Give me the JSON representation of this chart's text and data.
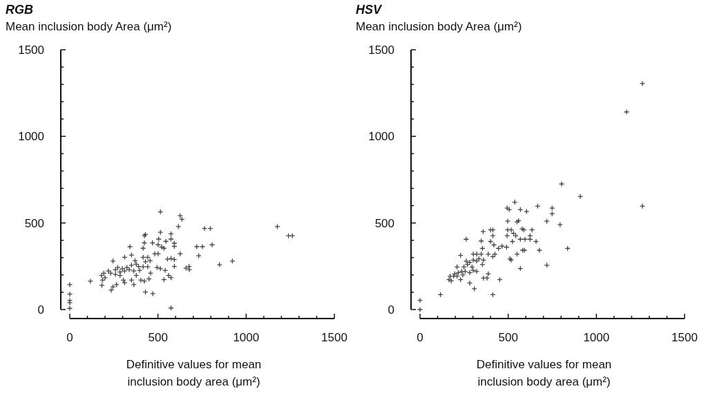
{
  "chart_data": [
    {
      "type": "scatter",
      "title": "RGB",
      "ylabel": "Mean inclusion body Area (μm²)",
      "xlabel": "Definitive values for mean inclusion body area (μm²)",
      "xlim": [
        0,
        1500
      ],
      "ylim": [
        0,
        1500
      ],
      "xticks": [
        0,
        {
          "value": 100,
          "label": null
        },
        {
          "value": 200,
          "label": null
        },
        {
          "value": 300,
          "label": null
        },
        {
          "value": 400,
          "label": null
        },
        500,
        {
          "value": 600,
          "label": null
        },
        {
          "value": 700,
          "label": null
        },
        {
          "value": 800,
          "label": null
        },
        {
          "value": 900,
          "label": null
        },
        1000,
        {
          "value": 1100,
          "label": null
        },
        {
          "value": 1200,
          "label": null
        },
        {
          "value": 1300,
          "label": null
        },
        {
          "value": 1400,
          "label": null
        },
        1500
      ],
      "yticks": [
        0,
        {
          "value": 100,
          "label": null
        },
        {
          "value": 200,
          "label": null
        },
        {
          "value": 300,
          "label": null
        },
        {
          "value": 400,
          "label": null
        },
        500,
        {
          "value": 600,
          "label": null
        },
        {
          "value": 700,
          "label": null
        },
        {
          "value": 800,
          "label": null
        },
        {
          "value": 900,
          "label": null
        },
        1000,
        {
          "value": 1100,
          "label": null
        },
        {
          "value": 1200,
          "label": null
        },
        {
          "value": 1300,
          "label": null
        },
        {
          "value": 1400,
          "label": null
        },
        1500
      ],
      "marker": "cross",
      "series": [
        {
          "color": "#444444",
          "x": [
            514,
            626,
            636,
            616,
            764,
            797,
            1177,
            1240,
            1262,
            807,
            720,
            752,
            731,
            849,
            922,
            676,
            678,
            659,
            574,
            0,
            0,
            0,
            0,
            0,
            117,
            182,
            235,
            245,
            265,
            429,
            471,
            423,
            429,
            423,
            514,
            574,
            504,
            341,
            416,
            469,
            501,
            521,
            534,
            545,
            574,
            593,
            593,
            626,
            482,
            501,
            311,
            350,
            245,
            370,
            416,
            442,
            455,
            429,
            554,
            574,
            593,
            593,
            495,
            514,
            541,
            390,
            416,
            442,
            350,
            324,
            298,
            272,
            219,
            193,
            180,
            200,
            186,
            232,
            259,
            285,
            311,
            337,
            363,
            259,
            285,
            304,
            311,
            350,
            363,
            377,
            403,
            423,
            449,
            458,
            377,
            396,
            534,
            560,
            574
          ],
          "values": [
            564,
            542,
            521,
            479,
            468,
            468,
            479,
            426,
            426,
            374,
            363,
            363,
            311,
            259,
            280,
            249,
            230,
            239,
            9,
            144,
            89,
            52,
            39,
            7,
            164,
            140,
            112,
            131,
            144,
            101,
            92,
            426,
            433,
            385,
            446,
            437,
            407,
            363,
            354,
            385,
            374,
            361,
            354,
            394,
            407,
            383,
            365,
            322,
            322,
            322,
            302,
            315,
            280,
            282,
            302,
            302,
            282,
            276,
            291,
            295,
            289,
            249,
            243,
            236,
            226,
            249,
            247,
            247,
            256,
            243,
            236,
            243,
            223,
            210,
            197,
            184,
            170,
            210,
            230,
            217,
            223,
            230,
            223,
            203,
            197,
            170,
            155,
            170,
            144,
            197,
            170,
            164,
            177,
            210,
            262,
            226,
            173,
            197,
            184
          ]
        }
      ]
    },
    {
      "type": "scatter",
      "title": "HSV",
      "ylabel": "Mean inclusion body Area (μm²)",
      "xlabel": "Definitive values for mean inclusion body area (μm²)",
      "xlim": [
        0,
        1500
      ],
      "ylim": [
        0,
        1500
      ],
      "xticks": [
        0,
        {
          "value": 100,
          "label": null
        },
        {
          "value": 200,
          "label": null
        },
        {
          "value": 300,
          "label": null
        },
        {
          "value": 400,
          "label": null
        },
        500,
        {
          "value": 600,
          "label": null
        },
        {
          "value": 700,
          "label": null
        },
        {
          "value": 800,
          "label": null
        },
        {
          "value": 900,
          "label": null
        },
        1000,
        {
          "value": 1100,
          "label": null
        },
        {
          "value": 1200,
          "label": null
        },
        {
          "value": 1300,
          "label": null
        },
        {
          "value": 1400,
          "label": null
        },
        1500
      ],
      "yticks": [
        0,
        {
          "value": 100,
          "label": null
        },
        {
          "value": 200,
          "label": null
        },
        {
          "value": 300,
          "label": null
        },
        {
          "value": 400,
          "label": null
        },
        500,
        {
          "value": 600,
          "label": null
        },
        {
          "value": 700,
          "label": null
        },
        {
          "value": 800,
          "label": null
        },
        {
          "value": 900,
          "label": null
        },
        1000,
        {
          "value": 1100,
          "label": null
        },
        {
          "value": 1200,
          "label": null
        },
        {
          "value": 1300,
          "label": null
        },
        {
          "value": 1400,
          "label": null
        },
        1500
      ],
      "marker": "cross",
      "series": [
        {
          "color": "#444444",
          "x": [
            0,
            0,
            116,
            413,
            909,
            1261,
            1171,
            1261,
            803,
            537,
            494,
            506,
            569,
            604,
            667,
            749,
            749,
            719,
            794,
            497,
            550,
            559,
            400,
            413,
            358,
            262,
            347,
            413,
            497,
            517,
            530,
            543,
            579,
            589,
            635,
            494,
            524,
            569,
            595,
            624,
            624,
            658,
            677,
            582,
            592,
            837,
            719,
            569,
            550,
            510,
            517,
            491,
            465,
            445,
            419,
            400,
            425,
            413,
            387,
            354,
            347,
            321,
            302,
            334,
            360,
            354,
            321,
            302,
            282,
            262,
            269,
            249,
            295,
            321,
            302,
            282,
            256,
            236,
            217,
            210,
            230,
            210,
            230,
            191,
            171,
            164,
            177,
            282,
            308,
            360,
            380,
            387,
            452,
            243,
            197
          ],
          "values": [
            53,
            0,
            86,
            86,
            653,
            597,
            1141,
            1305,
            725,
            620,
            586,
            577,
            577,
            566,
            597,
            586,
            553,
            510,
            490,
            510,
            506,
            513,
            460,
            460,
            450,
            406,
            396,
            426,
            460,
            460,
            440,
            426,
            466,
            460,
            460,
            426,
            393,
            406,
            406,
            426,
            406,
            393,
            342,
            342,
            342,
            353,
            256,
            237,
            320,
            293,
            286,
            360,
            366,
            353,
            373,
            393,
            320,
            306,
            320,
            353,
            320,
            320,
            320,
            293,
            286,
            260,
            280,
            286,
            273,
            280,
            260,
            246,
            246,
            220,
            226,
            213,
            220,
            220,
            213,
            246,
            313,
            193,
            173,
            193,
            193,
            173,
            166,
            153,
            120,
            182,
            182,
            206,
            173,
            200,
            206
          ]
        }
      ]
    }
  ]
}
